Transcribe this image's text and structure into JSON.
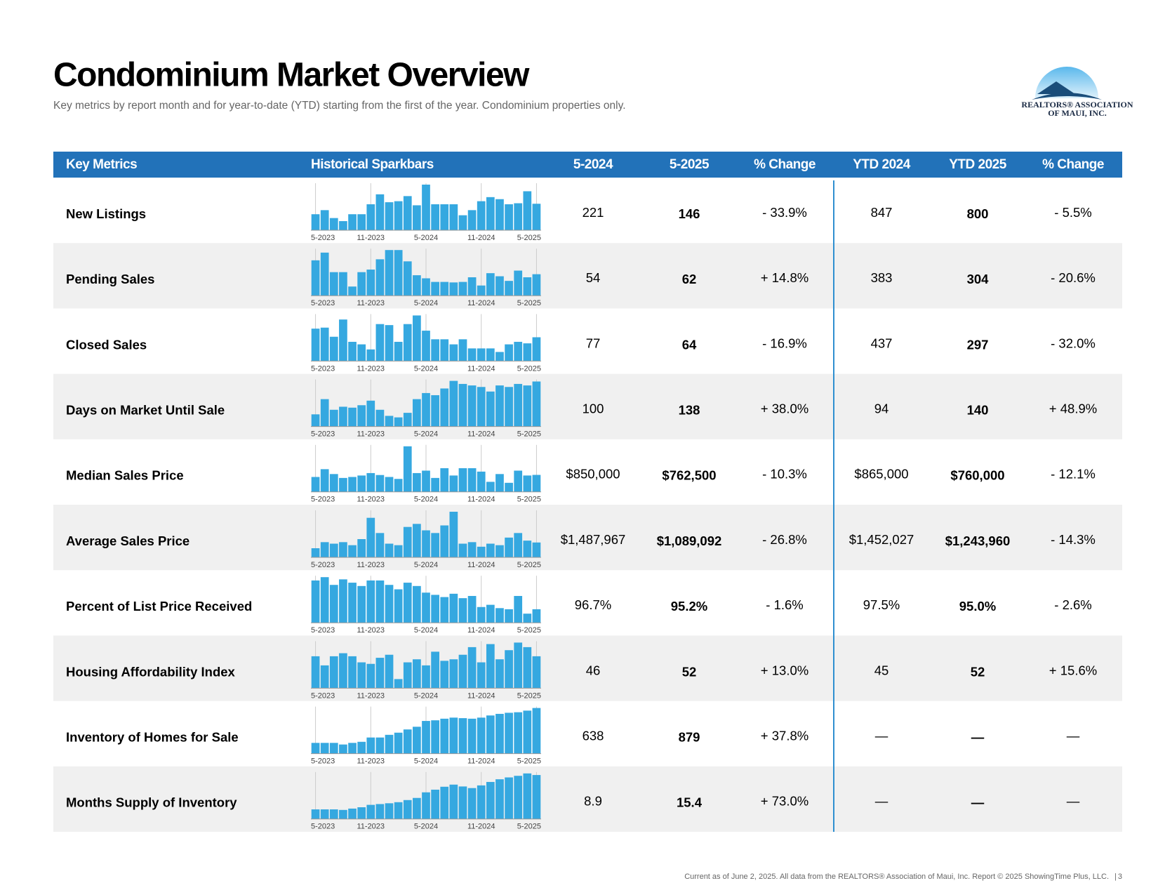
{
  "header": {
    "title": "Condominium Market Overview",
    "subtitle": "Key metrics by report month and for year-to-date (YTD) starting from the first of the year. Condominium properties only.",
    "logo_line1": "REALTORS® ASSOCIATION",
    "logo_line2": "OF MAUI, INC."
  },
  "table": {
    "columns": [
      "Key Metrics",
      "Historical Sparkbars",
      "5-2024",
      "5-2025",
      "% Change",
      "YTD 2024",
      "YTD 2025",
      "% Change"
    ],
    "spark_labels": [
      "5-2023",
      "11-2023",
      "5-2024",
      "11-2024",
      "5-2025"
    ],
    "rows": [
      {
        "metric": "New Listings",
        "spark": [
          105,
          121,
          90,
          78,
          105,
          105,
          144,
          183,
          152,
          156,
          176,
          140,
          221,
          144,
          144,
          144,
          101,
          121,
          156,
          172,
          164,
          144,
          148,
          195,
          146
        ],
        "cells": [
          "221",
          "146",
          "- 33.9%",
          "847",
          "800",
          "- 5.5%"
        ]
      },
      {
        "metric": "Pending Sales",
        "spark": [
          89,
          104,
          66,
          66,
          38,
          66,
          71,
          91,
          109,
          109,
          87,
          60,
          54,
          47,
          47,
          46,
          47,
          56,
          40,
          64,
          58,
          49,
          69,
          56,
          62
        ],
        "cells": [
          "54",
          "62",
          "+ 14.8%",
          "383",
          "304",
          "- 20.6%"
        ]
      },
      {
        "metric": "Closed Sales",
        "spark": [
          81,
          83,
          65,
          99,
          55,
          50,
          40,
          90,
          88,
          55,
          90,
          107,
          77,
          60,
          60,
          50,
          60,
          42,
          42,
          42,
          35,
          50,
          55,
          52,
          64
        ],
        "cells": [
          "77",
          "64",
          "- 16.9%",
          "437",
          "297",
          "- 32.0%"
        ]
      },
      {
        "metric": "Days on Market Until Sale",
        "spark": [
          30,
          80,
          45,
          55,
          52,
          60,
          75,
          45,
          25,
          20,
          35,
          80,
          100,
          93,
          115,
          140,
          130,
          125,
          120,
          105,
          125,
          120,
          130,
          125,
          138
        ],
        "cells": [
          "100",
          "138",
          "+ 38.0%",
          "94",
          "140",
          "+ 48.9%"
        ]
      },
      {
        "metric": "Median Sales Price",
        "spark": [
          720000,
          880000,
          780000,
          700000,
          720000,
          750000,
          800000,
          760000,
          720000,
          680000,
          1350000,
          800000,
          850000,
          700000,
          900000,
          750000,
          900000,
          900000,
          830000,
          620000,
          780000,
          600000,
          850000,
          750000,
          762500
        ],
        "cells": [
          "$850,000",
          "$762,500",
          "- 10.3%",
          "$865,000",
          "$760,000",
          "- 12.1%"
        ]
      },
      {
        "metric": "Average Sales Price",
        "spark": [
          900000,
          1100000,
          1050000,
          1100000,
          1000000,
          1200000,
          1900000,
          1400000,
          1050000,
          1000000,
          1600000,
          1700000,
          1487967,
          1400000,
          1650000,
          2100000,
          1050000,
          1100000,
          950000,
          1050000,
          1000000,
          1250000,
          1400000,
          1150000,
          1089092
        ],
        "cells": [
          "$1,487,967",
          "$1,089,092",
          "- 26.8%",
          "$1,452,027",
          "$1,243,960",
          "- 14.3%"
        ]
      },
      {
        "metric": "Percent of List Price Received",
        "spark": [
          97.8,
          98.1,
          97.4,
          97.9,
          97.6,
          97.3,
          97.8,
          97.8,
          97.4,
          97.0,
          97.6,
          97.3,
          96.7,
          96.5,
          96.3,
          96.6,
          96.2,
          96.4,
          95.4,
          95.6,
          95.3,
          95.2,
          96.4,
          94.8,
          95.2
        ],
        "cells": [
          "96.7%",
          "95.2%",
          "- 1.6%",
          "97.5%",
          "95.0%",
          "- 2.6%"
        ]
      },
      {
        "metric": "Housing Affordability Index",
        "spark": [
          52,
          46,
          52,
          54,
          52,
          48,
          47,
          51,
          53,
          37,
          48,
          50,
          46,
          55,
          49,
          50,
          53,
          58,
          48,
          60,
          50,
          56,
          61,
          58,
          52
        ],
        "cells": [
          "46",
          "52",
          "+ 13.0%",
          "45",
          "52",
          "+ 15.6%"
        ]
      },
      {
        "metric": "Inventory of Homes for Sale",
        "spark": [
          230,
          230,
          230,
          200,
          230,
          250,
          330,
          330,
          380,
          420,
          480,
          530,
          638,
          650,
          680,
          700,
          690,
          680,
          700,
          740,
          770,
          790,
          800,
          830,
          879
        ],
        "cells": [
          "638",
          "879",
          "+ 37.8%",
          "—",
          "—",
          "—"
        ]
      },
      {
        "metric": "Months Supply of Inventory",
        "spark": [
          2.5,
          2.5,
          2.5,
          2.3,
          2.8,
          3.3,
          4.2,
          4.5,
          4.8,
          5.2,
          6.0,
          6.8,
          8.9,
          9.9,
          11.0,
          11.8,
          11.1,
          10.5,
          11.5,
          12.8,
          13.8,
          14.5,
          15.1,
          16.0,
          15.4
        ],
        "cells": [
          "8.9",
          "15.4",
          "+ 73.0%",
          "—",
          "—",
          "—"
        ]
      }
    ]
  },
  "footer": {
    "text": "Current as of June 2, 2025. All data from the REALTORS® Association of Maui, Inc. Report © 2025 ShowingTime Plus, LLC.",
    "page": "3"
  }
}
